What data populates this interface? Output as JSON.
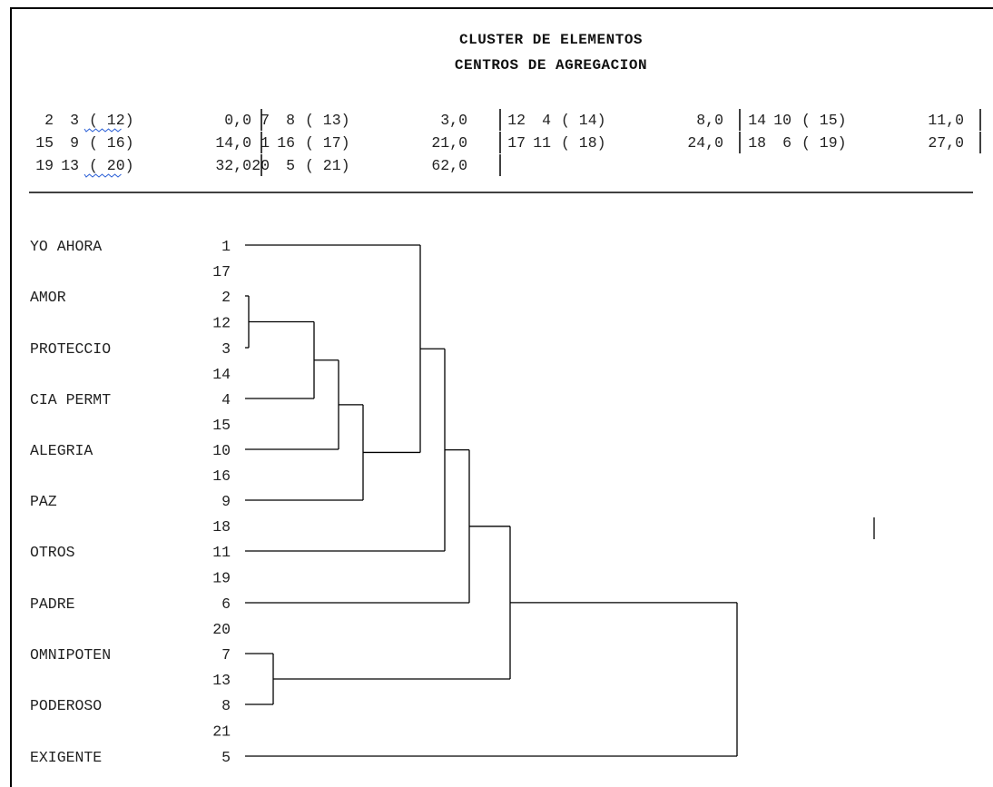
{
  "title": "CLUSTER DE ELEMENTOS",
  "subtitle": "CENTROS DE AGREGACION",
  "merge_table": [
    [
      {
        "a": "2",
        "b": "3",
        "node": "( 12)",
        "dist": "0,0",
        "squiggle": true
      },
      {
        "a": "7",
        "b": "8",
        "node": "( 13)",
        "dist": "3,0",
        "squiggle": false
      },
      {
        "a": "12",
        "b": "4",
        "node": "( 14)",
        "dist": "8,0",
        "squiggle": false
      },
      {
        "a": "14",
        "b": "10",
        "node": "( 15)",
        "dist": "11,0",
        "squiggle": false
      }
    ],
    [
      {
        "a": "15",
        "b": "9",
        "node": "( 16)",
        "dist": "14,0",
        "squiggle": false
      },
      {
        "a": "1",
        "b": "16",
        "node": "( 17)",
        "dist": "21,0",
        "squiggle": false
      },
      {
        "a": "17",
        "b": "11",
        "node": "( 18)",
        "dist": "24,0",
        "squiggle": false
      },
      {
        "a": "18",
        "b": "6",
        "node": "( 19)",
        "dist": "27,0",
        "squiggle": false
      }
    ],
    [
      {
        "a": "19",
        "b": "13",
        "node": "( 20)",
        "dist": "32,0",
        "squiggle": true
      },
      {
        "a": "20",
        "b": "5",
        "node": "( 21)",
        "dist": "62,0",
        "squiggle": false
      }
    ]
  ],
  "leaves": [
    {
      "label": "YO AHORA",
      "id": "1"
    },
    {
      "label": "AMOR",
      "id": "2"
    },
    {
      "label": "PROTECCIO",
      "id": "3"
    },
    {
      "label": "CIA PERMT",
      "id": "4"
    },
    {
      "label": "ALEGRIA",
      "id": "10"
    },
    {
      "label": "PAZ",
      "id": "9"
    },
    {
      "label": "OTROS",
      "id": "11"
    },
    {
      "label": "PADRE",
      "id": "6"
    },
    {
      "label": "OMNIPOTEN",
      "id": "7"
    },
    {
      "label": "PODEROSO",
      "id": "8"
    },
    {
      "label": "EXIGENTE",
      "id": "5"
    }
  ],
  "node_labels": [
    "17",
    "12",
    "14",
    "15",
    "16",
    "18",
    "19",
    "20",
    "13",
    "21"
  ]
}
